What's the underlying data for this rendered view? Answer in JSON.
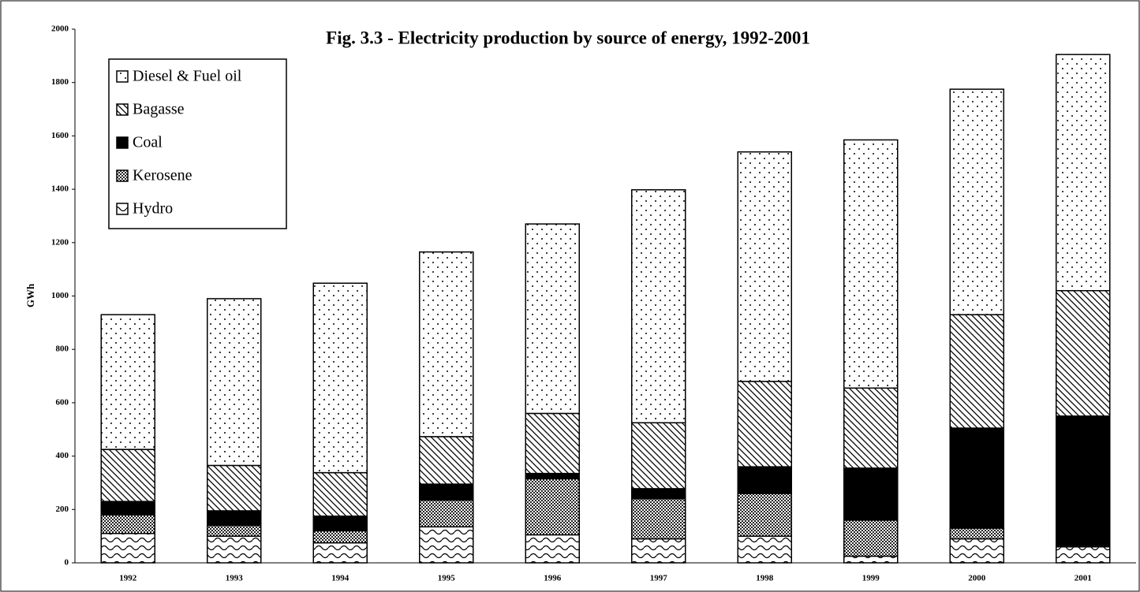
{
  "chart_data": {
    "type": "stacked-bar",
    "title": "Fig. 3.3 - Electricity production by source of energy, 1992-2001",
    "ylabel": "GWh",
    "categories": [
      "1992",
      "1993",
      "1994",
      "1995",
      "1996",
      "1997",
      "1998",
      "1999",
      "2000",
      "2001"
    ],
    "series": [
      {
        "name": "Hydro",
        "color": "#000000",
        "pattern": "wave",
        "values": [
          110,
          100,
          75,
          135,
          105,
          90,
          100,
          25,
          90,
          60
        ]
      },
      {
        "name": "Kerosene",
        "color": "#000000",
        "pattern": "crosshatch",
        "values": [
          70,
          40,
          45,
          100,
          210,
          150,
          160,
          135,
          40,
          5
        ]
      },
      {
        "name": "Coal",
        "color": "#000000",
        "pattern": "solid",
        "values": [
          50,
          55,
          55,
          60,
          20,
          38,
          100,
          195,
          375,
          485
        ]
      },
      {
        "name": "Bagasse",
        "color": "#000000",
        "pattern": "diagonal",
        "values": [
          195,
          170,
          163,
          178,
          225,
          247,
          320,
          300,
          425,
          470
        ]
      },
      {
        "name": "Diesel & Fuel oil",
        "color": "#000000",
        "pattern": "dots",
        "values": [
          505,
          625,
          710,
          692,
          710,
          873,
          860,
          930,
          845,
          885
        ]
      }
    ],
    "ylim": [
      0,
      2000
    ],
    "yticks": [
      0,
      200,
      400,
      600,
      800,
      1000,
      1200,
      1400,
      1600,
      1800,
      2000
    ],
    "legend": "upper-left",
    "grid": false
  }
}
